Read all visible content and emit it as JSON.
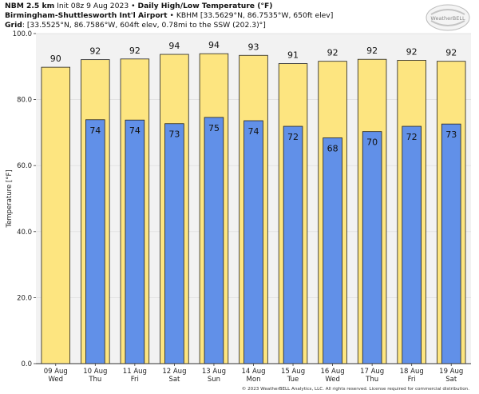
{
  "header": {
    "model": "NBM 2.5 km",
    "init": "Init 08z 9 Aug 2023",
    "bullet": "•",
    "product": "Daily High/Low Temperature (°F)",
    "station_name": "Birmingham-Shuttlesworth Int'l Airport",
    "station_info": "KBHM [33.5629°N, 86.7535°W, 650ft elev]",
    "grid_label": "Grid",
    "grid_info": ": [33.5525°N, 86.7586°W, 604ft elev, 0.78mi to the SSW (202.3)°]"
  },
  "logo": {
    "brand": "WeatherBELL"
  },
  "footer": "© 2023 WeatherBELL Analytics, LLC. All rights reserved. License required for commercial distribution.",
  "colors": {
    "high": "#fde580",
    "low": "#6190e8",
    "plot_bg": "#f2f2f2",
    "stroke": "#222222"
  },
  "chart_data": {
    "type": "bar",
    "ylabel": "Temperature [°F]",
    "ylim": [
      0,
      100
    ],
    "yticks": [
      "0.0",
      "20.0",
      "40.0",
      "60.0",
      "80.0",
      "100.0"
    ],
    "ytick_values": [
      0,
      20,
      40,
      60,
      80,
      100
    ],
    "categories": [
      "09 Aug",
      "10 Aug",
      "11 Aug",
      "12 Aug",
      "13 Aug",
      "14 Aug",
      "15 Aug",
      "16 Aug",
      "17 Aug",
      "18 Aug",
      "19 Aug"
    ],
    "days": [
      "Wed",
      "Thu",
      "Fri",
      "Sat",
      "Sun",
      "Mon",
      "Tue",
      "Wed",
      "Thu",
      "Fri",
      "Sat"
    ],
    "series": [
      {
        "values": [
          89.8,
          92.1,
          92.3,
          93.7,
          93.9,
          93.4,
          90.9,
          91.6,
          92.2,
          91.9,
          91.6
        ],
        "labels": [
          "90",
          "92",
          "92",
          "94",
          "94",
          "93",
          "91",
          "92",
          "92",
          "92",
          "92"
        ]
      },
      {
        "values": [
          null,
          73.9,
          73.8,
          72.7,
          74.6,
          73.6,
          71.9,
          68.4,
          70.3,
          71.9,
          72.6
        ],
        "labels": [
          null,
          "74",
          "74",
          "73",
          "75",
          "74",
          "72",
          "68",
          "70",
          "72",
          "73"
        ]
      }
    ]
  }
}
